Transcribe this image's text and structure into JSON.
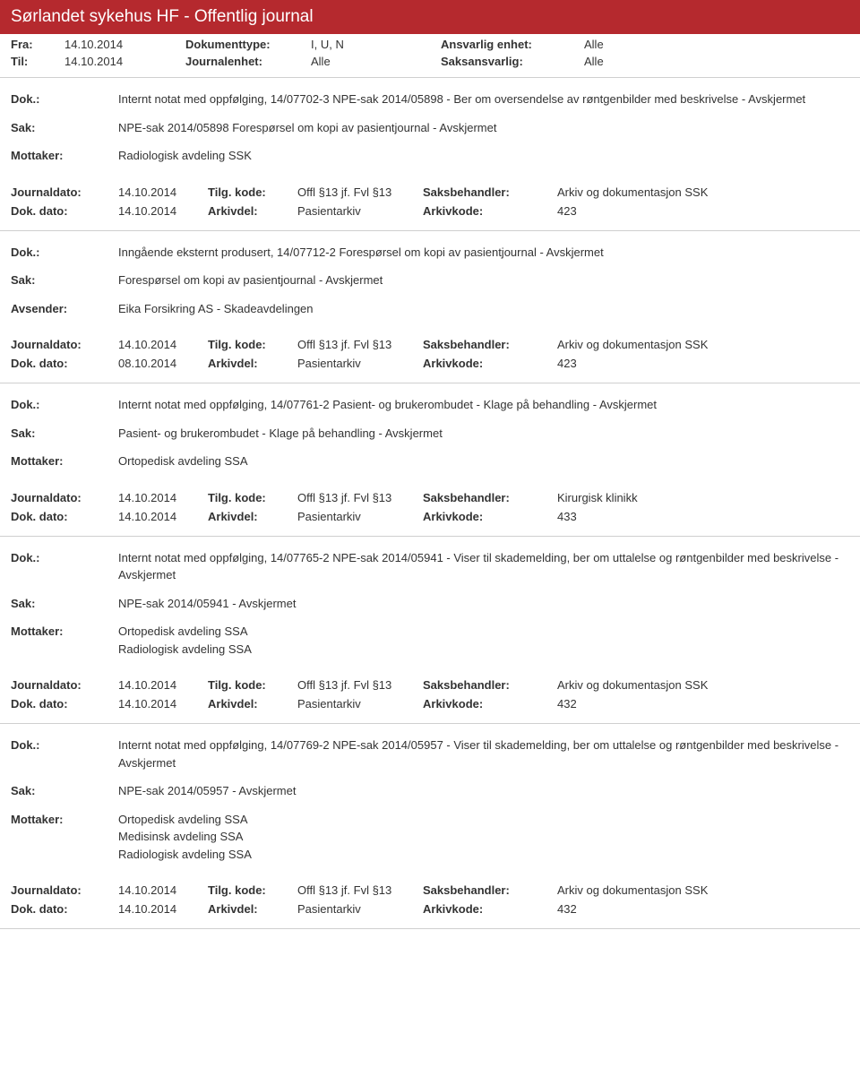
{
  "header": {
    "title": "Sørlandet sykehus HF - Offentlig journal"
  },
  "meta": {
    "fra_lbl": "Fra:",
    "fra_val": "14.10.2014",
    "til_lbl": "Til:",
    "til_val": "14.10.2014",
    "doktype_lbl": "Dokumenttype:",
    "doktype_val": "I, U, N",
    "journalenhet_lbl": "Journalenhet:",
    "journalenhet_val": "Alle",
    "ansvarlig_lbl": "Ansvarlig enhet:",
    "ansvarlig_val": "Alle",
    "saksansvarlig_lbl": "Saksansvarlig:",
    "saksansvarlig_val": "Alle"
  },
  "labels": {
    "dok": "Dok.:",
    "sak": "Sak:",
    "mottaker": "Mottaker:",
    "avsender": "Avsender:",
    "journaldato": "Journaldato:",
    "tilgkode": "Tilg. kode:",
    "saksbehandler": "Saksbehandler:",
    "dokdato": "Dok. dato:",
    "arkivdel": "Arkivdel:",
    "arkivkode": "Arkivkode:"
  },
  "entries": [
    {
      "dok": "Internt notat med oppfølging, 14/07702-3 NPE-sak 2014/05898 - Ber om oversendelse av røntgenbilder med beskrivelse - Avskjermet",
      "sak": "NPE-sak 2014/05898 Forespørsel om kopi av pasientjournal - Avskjermet",
      "party_label": "Mottaker:",
      "party_lines": [
        "Radiologisk avdeling SSK"
      ],
      "journaldato": "14.10.2014",
      "tilgkode": "Offl §13 jf. Fvl §13",
      "saksbehandler": "Arkiv og dokumentasjon SSK",
      "dokdato": "14.10.2014",
      "arkivdel": "Pasientarkiv",
      "arkivkode": "423"
    },
    {
      "dok": "Inngående eksternt produsert, 14/07712-2 Forespørsel om kopi av pasientjournal - Avskjermet",
      "sak": "Forespørsel om kopi av pasientjournal - Avskjermet",
      "party_label": "Avsender:",
      "party_lines": [
        "Eika Forsikring AS - Skadeavdelingen"
      ],
      "journaldato": "14.10.2014",
      "tilgkode": "Offl §13 jf. Fvl §13",
      "saksbehandler": "Arkiv og dokumentasjon SSK",
      "dokdato": "08.10.2014",
      "arkivdel": "Pasientarkiv",
      "arkivkode": "423"
    },
    {
      "dok": "Internt notat med oppfølging, 14/07761-2 Pasient- og brukerombudet - Klage på behandling - Avskjermet",
      "sak": "Pasient- og brukerombudet - Klage på behandling - Avskjermet",
      "party_label": "Mottaker:",
      "party_lines": [
        "Ortopedisk avdeling SSA"
      ],
      "journaldato": "14.10.2014",
      "tilgkode": "Offl §13 jf. Fvl §13",
      "saksbehandler": "Kirurgisk klinikk",
      "dokdato": "14.10.2014",
      "arkivdel": "Pasientarkiv",
      "arkivkode": "433"
    },
    {
      "dok": "Internt notat med oppfølging, 14/07765-2 NPE-sak 2014/05941 - Viser til skademelding, ber om uttalelse og røntgenbilder med beskrivelse - Avskjermet",
      "sak": "NPE-sak 2014/05941 - Avskjermet",
      "party_label": "Mottaker:",
      "party_lines": [
        "Ortopedisk avdeling SSA",
        "Radiologisk avdeling SSA"
      ],
      "journaldato": "14.10.2014",
      "tilgkode": "Offl §13 jf. Fvl §13",
      "saksbehandler": "Arkiv og dokumentasjon SSK",
      "dokdato": "14.10.2014",
      "arkivdel": "Pasientarkiv",
      "arkivkode": "432"
    },
    {
      "dok": "Internt notat med oppfølging, 14/07769-2 NPE-sak 2014/05957 - Viser til skademelding, ber om uttalelse og røntgenbilder med beskrivelse - Avskjermet",
      "sak": "NPE-sak 2014/05957 - Avskjermet",
      "party_label": "Mottaker:",
      "party_lines": [
        "Ortopedisk avdeling SSA",
        "Medisinsk avdeling SSA",
        "Radiologisk avdeling SSA"
      ],
      "journaldato": "14.10.2014",
      "tilgkode": "Offl §13 jf. Fvl §13",
      "saksbehandler": "Arkiv og dokumentasjon SSK",
      "dokdato": "14.10.2014",
      "arkivdel": "Pasientarkiv",
      "arkivkode": "432"
    }
  ]
}
